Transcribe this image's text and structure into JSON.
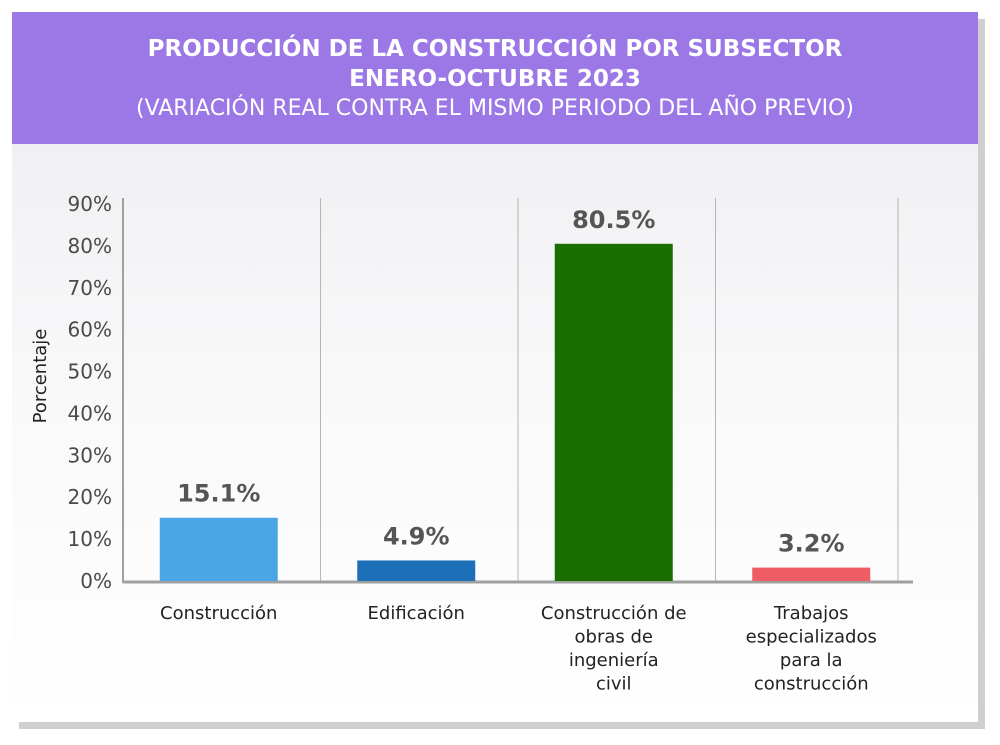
{
  "header": {
    "title_line1": "PRODUCCIÓN DE LA CONSTRUCCIÓN POR SUBSECTOR",
    "title_line2": "ENERO-OCTUBRE 2023",
    "subtitle": "(VARIACIÓN REAL CONTRA EL MISMO PERIODO DEL AÑO PREVIO)"
  },
  "chart_data": {
    "type": "bar",
    "title": "PRODUCCIÓN DE LA CONSTRUCCIÓN POR SUBSECTOR ENERO-OCTUBRE 2023",
    "subtitle": "(VARIACIÓN REAL CONTRA EL MISMO PERIODO DEL AÑO PREVIO)",
    "ylabel": "Porcentaje",
    "xlabel": "",
    "ylim": [
      0,
      90
    ],
    "yticks": [
      "0%",
      "10%",
      "20%",
      "30%",
      "40%",
      "50%",
      "60%",
      "70%",
      "80%",
      "90%"
    ],
    "categories": [
      [
        "Construcción"
      ],
      [
        "Edificación"
      ],
      [
        "Construcción de",
        "obras de",
        "ingeniería",
        "civil"
      ],
      [
        "Trabajos",
        "especializados",
        "para la",
        "construcción"
      ]
    ],
    "values": [
      15.1,
      4.9,
      80.5,
      3.2
    ],
    "data_labels": [
      "15.1%",
      "4.9%",
      "80.5%",
      "3.2%"
    ],
    "colors": [
      "#4ba6e6",
      "#1d70b8",
      "#1a6e00",
      "#f05c66"
    ],
    "grid": "vertical separators between categories",
    "legend": "none"
  }
}
